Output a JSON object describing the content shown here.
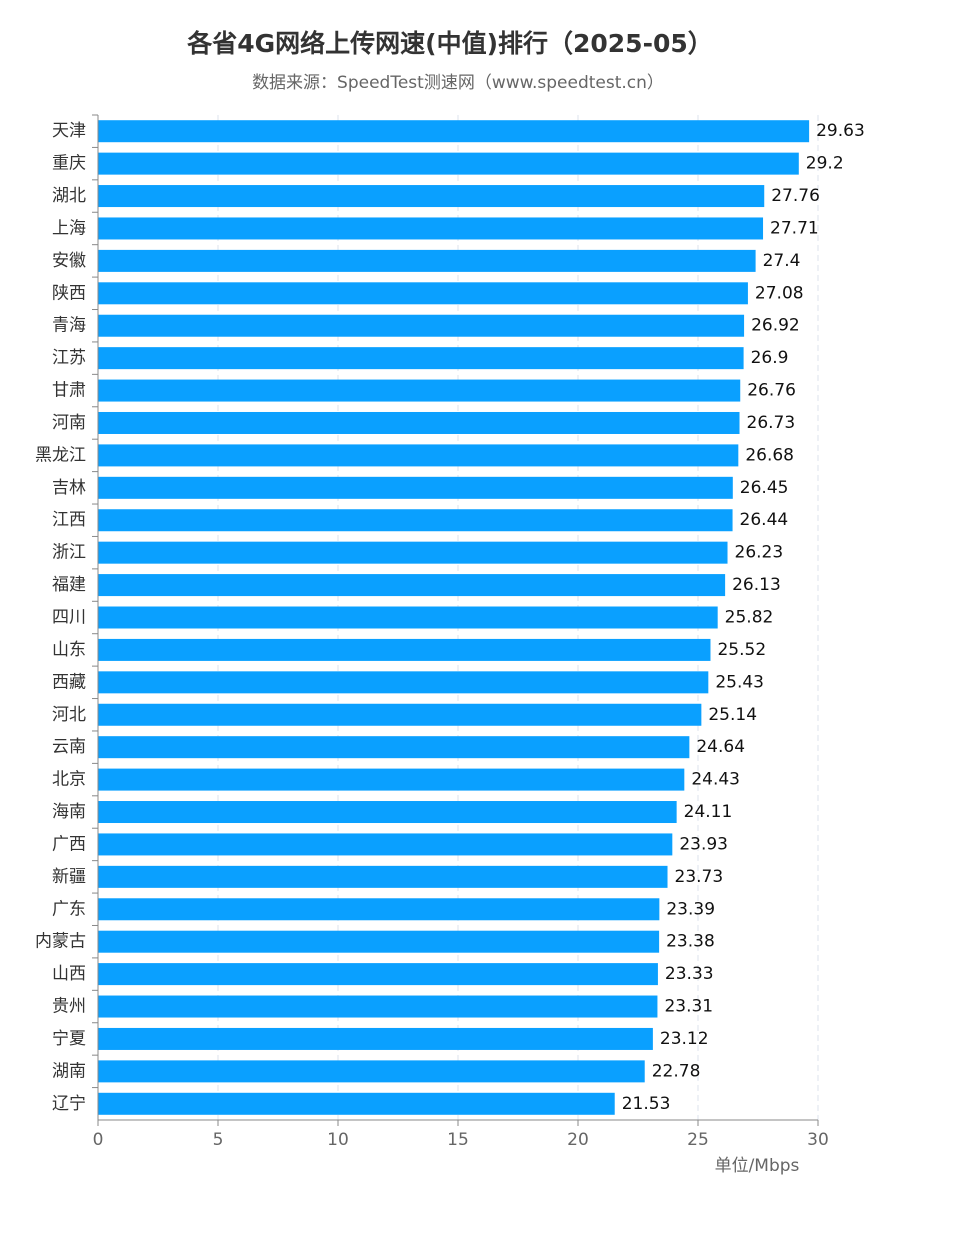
{
  "chart_data": {
    "type": "hbar",
    "title": "各省4G网络上传网速(中值)排行（2025-05）",
    "subtitle": "数据来源：SpeedTest测速网（www.speedtest.cn）",
    "x_axis_label": "单位/Mbps",
    "categories": [
      "天津",
      "重庆",
      "湖北",
      "上海",
      "安徽",
      "陕西",
      "青海",
      "江苏",
      "甘肃",
      "河南",
      "黑龙江",
      "吉林",
      "江西",
      "浙江",
      "福建",
      "四川",
      "山东",
      "西藏",
      "河北",
      "云南",
      "北京",
      "海南",
      "广西",
      "新疆",
      "广东",
      "内蒙古",
      "山西",
      "贵州",
      "宁夏",
      "湖南",
      "辽宁"
    ],
    "values": [
      29.63,
      29.2,
      27.76,
      27.71,
      27.4,
      27.08,
      26.92,
      26.9,
      26.76,
      26.73,
      26.68,
      26.45,
      26.44,
      26.23,
      26.13,
      25.82,
      25.52,
      25.43,
      25.14,
      24.64,
      24.43,
      24.11,
      23.93,
      23.73,
      23.39,
      23.38,
      23.33,
      23.31,
      23.12,
      22.78,
      21.53
    ],
    "color": "#0aa0ff",
    "xlim": [
      0,
      30
    ],
    "xticks": [
      0,
      5,
      10,
      15,
      20,
      25,
      30
    ],
    "grid": true
  }
}
